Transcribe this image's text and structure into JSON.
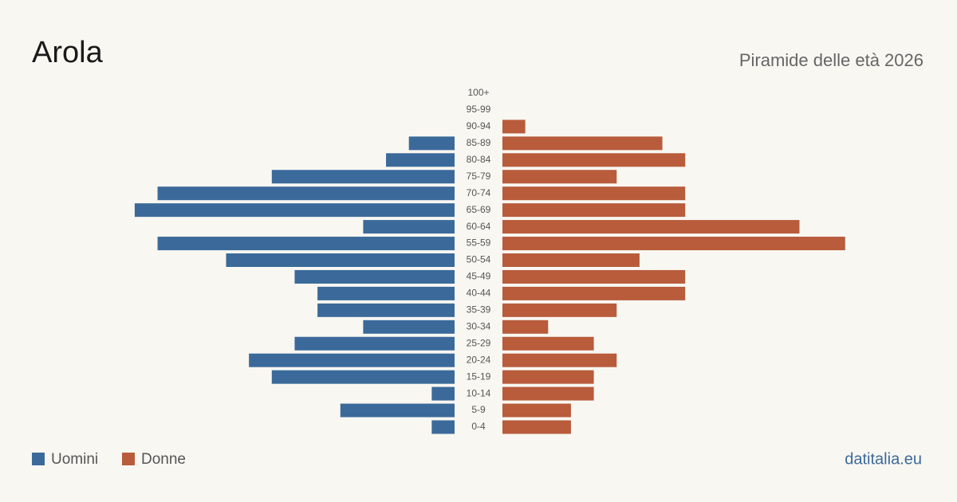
{
  "chart_data": {
    "type": "pyramid",
    "title": "Arola",
    "subtitle": "Piramide delle età 2026",
    "source": "datitalia.eu",
    "categories": [
      "0-4",
      "5-9",
      "10-14",
      "15-19",
      "20-24",
      "25-29",
      "30-34",
      "35-39",
      "40-44",
      "45-49",
      "50-54",
      "55-59",
      "60-64",
      "65-69",
      "70-74",
      "75-79",
      "80-84",
      "85-89",
      "90-94",
      "95-99",
      "100+"
    ],
    "series": [
      {
        "name": "Uomini",
        "color": "#3b6a9a",
        "values": [
          1,
          5,
          1,
          8,
          9,
          7,
          4,
          6,
          6,
          7,
          10,
          13,
          4,
          14,
          13,
          8,
          3,
          2,
          0,
          0,
          0
        ]
      },
      {
        "name": "Donne",
        "color": "#b85c3c",
        "values": [
          3,
          3,
          4,
          4,
          5,
          4,
          2,
          5,
          8,
          8,
          6,
          15,
          13,
          8,
          8,
          5,
          8,
          7,
          1,
          0,
          0
        ]
      }
    ]
  }
}
